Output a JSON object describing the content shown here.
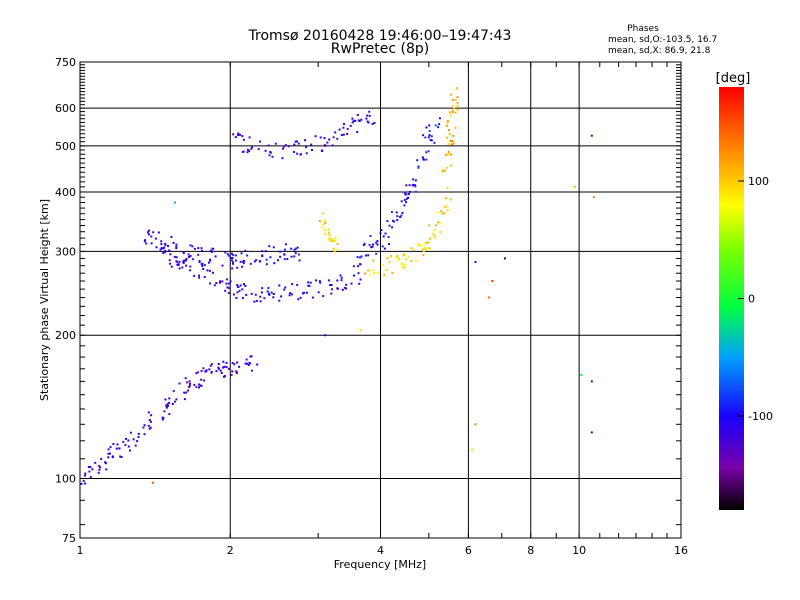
{
  "chart_data": {
    "type": "scatter",
    "title": "Tromsø 20160428 19:46:00–19:47:43",
    "subtitle": "RwPretec (8p)",
    "xlabel": "Frequency [MHz]",
    "ylabel": "Stationary phase Virtual Height [km]",
    "xscale": "log",
    "yscale": "log",
    "xlim": [
      1,
      16
    ],
    "ylim": [
      75,
      750
    ],
    "x_ticks": [
      1,
      2,
      4,
      6,
      8,
      10,
      16
    ],
    "x_tick_labels": [
      "1",
      "2",
      "4",
      "6",
      "8",
      "10",
      "16"
    ],
    "y_ticks": [
      75,
      100,
      200,
      300,
      400,
      500,
      600,
      750
    ],
    "y_tick_labels": [
      "75",
      "100",
      "200",
      "300",
      "400",
      "500",
      "600",
      "750"
    ],
    "grid": true,
    "stats": {
      "title": "Phases",
      "line_o": "mean, sd,O:-103.5, 16.7",
      "line_x": "mean, sd,X: 86.9, 21.8"
    },
    "colorbar": {
      "label": "[deg]",
      "range": [
        -180,
        180
      ],
      "ticks": [
        100,
        0,
        -100
      ],
      "tick_labels": [
        "100",
        "0",
        "-100"
      ]
    },
    "traces": [
      {
        "x": [
          1.0,
          1.05,
          1.1,
          1.15,
          1.2,
          1.28,
          1.35,
          1.42,
          1.5,
          1.58,
          1.65,
          1.72,
          1.8,
          1.88,
          1.95,
          2.05,
          2.15,
          2.25
        ],
        "y": [
          100,
          104,
          108,
          112,
          115,
          120,
          128,
          135,
          142,
          150,
          158,
          160,
          165,
          168,
          170,
          172,
          174,
          176
        ],
        "phase": -115
      },
      {
        "x": [
          1.35,
          1.4,
          1.45,
          1.5,
          1.55,
          1.6,
          1.7,
          1.8,
          1.9,
          2.0,
          2.1,
          2.2,
          2.35,
          2.5,
          2.7,
          2.9,
          3.1,
          3.3,
          3.5,
          3.7
        ],
        "y": [
          330,
          320,
          310,
          300,
          292,
          285,
          275,
          266,
          258,
          252,
          248,
          246,
          245,
          245,
          246,
          248,
          252,
          258,
          265,
          272
        ],
        "phase": -110
      },
      {
        "x": [
          1.5,
          1.6,
          1.7,
          1.8,
          1.9,
          2.0,
          2.1,
          2.2,
          2.35,
          2.5,
          2.65,
          2.8
        ],
        "y": [
          310,
          300,
          296,
          292,
          290,
          288,
          290,
          292,
          294,
          296,
          298,
          300
        ],
        "phase": -105
      },
      {
        "x": [
          2.0,
          2.15,
          2.3,
          2.5,
          2.7,
          2.9,
          3.1,
          3.3,
          3.5,
          3.7,
          3.9
        ],
        "y": [
          520,
          505,
          495,
          490,
          492,
          498,
          510,
          525,
          545,
          565,
          590
        ],
        "phase": -112
      },
      {
        "x": [
          3.6,
          3.8,
          4.0,
          4.15,
          4.3,
          4.45,
          4.6,
          4.75,
          4.9,
          5.05,
          5.2
        ],
        "y": [
          300,
          305,
          315,
          330,
          350,
          375,
          405,
          440,
          480,
          530,
          590
        ],
        "phase": -100
      },
      {
        "x": [
          3.8,
          4.0,
          4.3,
          4.5,
          4.7,
          4.9,
          5.1,
          5.3,
          5.5
        ],
        "y": [
          275,
          278,
          282,
          288,
          296,
          310,
          330,
          360,
          400
        ],
        "phase": 95
      },
      {
        "x": [
          3.0,
          3.1,
          3.2,
          3.3
        ],
        "y": [
          350,
          340,
          325,
          310
        ],
        "phase": 100
      },
      {
        "x": [
          5.4,
          5.45,
          5.5,
          5.55,
          5.6,
          5.65
        ],
        "y": [
          420,
          470,
          520,
          570,
          610,
          640
        ],
        "phase": 110
      }
    ],
    "isolated_points": [
      {
        "x": 6.2,
        "y": 285,
        "phase": -110
      },
      {
        "x": 6.6,
        "y": 240,
        "phase": 140
      },
      {
        "x": 6.7,
        "y": 260,
        "phase": 155
      },
      {
        "x": 7.1,
        "y": 290,
        "phase": -170
      },
      {
        "x": 6.2,
        "y": 130,
        "phase": 130
      },
      {
        "x": 6.1,
        "y": 115,
        "phase": 60
      },
      {
        "x": 10.6,
        "y": 160,
        "phase": -110
      },
      {
        "x": 10.6,
        "y": 125,
        "phase": -110
      },
      {
        "x": 10.1,
        "y": 165,
        "phase": -10
      },
      {
        "x": 10.6,
        "y": 525,
        "phase": -110
      },
      {
        "x": 10.7,
        "y": 390,
        "phase": 130
      },
      {
        "x": 9.8,
        "y": 410,
        "phase": 110
      },
      {
        "x": 3.1,
        "y": 200,
        "phase": -110
      },
      {
        "x": 3.65,
        "y": 205,
        "phase": 95
      },
      {
        "x": 1.55,
        "y": 380,
        "phase": -40
      },
      {
        "x": 1.4,
        "y": 98,
        "phase": 150
      }
    ]
  }
}
